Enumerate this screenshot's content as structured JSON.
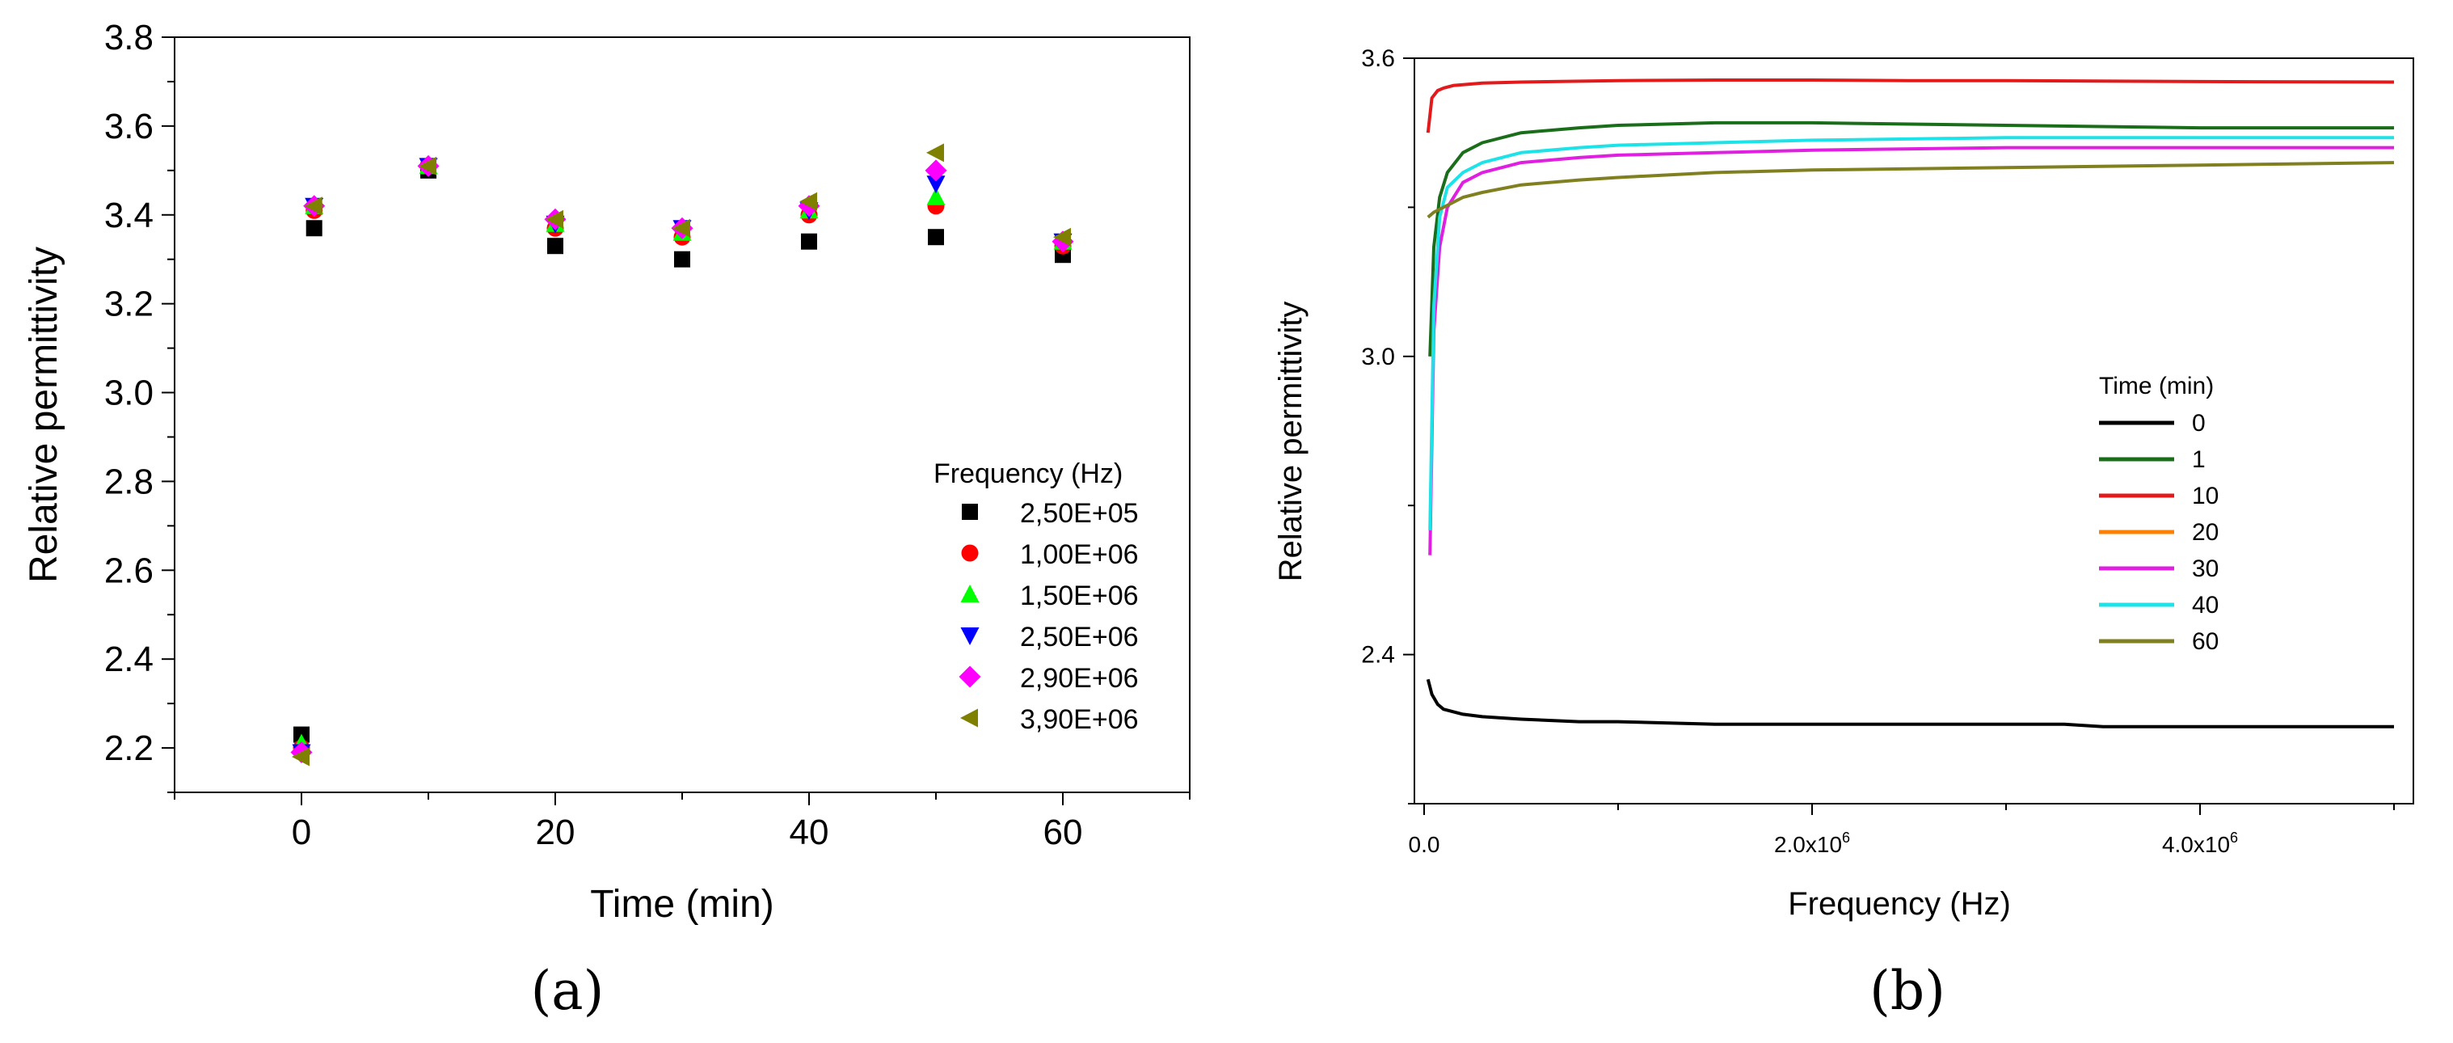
{
  "chart_data": [
    {
      "panel": "(a)",
      "type": "scatter",
      "title": "",
      "xlabel": "Time (min)",
      "ylabel": "Relative permittivity",
      "xlim": [
        -10,
        70
      ],
      "ylim": [
        2.1,
        3.8
      ],
      "xticks": [
        0,
        20,
        40,
        60
      ],
      "yticks": [
        2.2,
        2.4,
        2.6,
        2.8,
        3.0,
        3.2,
        3.4,
        3.6,
        3.8
      ],
      "xtick_labels": [
        "0",
        "20",
        "40",
        "60"
      ],
      "ytick_labels": [
        "2.2",
        "2.4",
        "2.6",
        "2.8",
        "3.0",
        "3.2",
        "3.4",
        "3.6",
        "3.8"
      ],
      "legend_title": "Frequency (Hz)",
      "legend_position": "right",
      "series": [
        {
          "name": "2,50E+05",
          "color": "#000000",
          "marker": "square",
          "points": [
            [
              0,
              2.23
            ],
            [
              1,
              3.37
            ],
            [
              10,
              3.5
            ],
            [
              20,
              3.33
            ],
            [
              30,
              3.3
            ],
            [
              40,
              3.34
            ],
            [
              50,
              3.35
            ],
            [
              60,
              3.31
            ]
          ]
        },
        {
          "name": "1,00E+06",
          "color": "#ff0000",
          "marker": "circle",
          "points": [
            [
              0,
              2.2
            ],
            [
              1,
              3.41
            ],
            [
              10,
              3.51
            ],
            [
              20,
              3.37
            ],
            [
              30,
              3.35
            ],
            [
              40,
              3.4
            ],
            [
              50,
              3.42
            ],
            [
              60,
              3.33
            ]
          ]
        },
        {
          "name": "1,50E+06",
          "color": "#00ff00",
          "marker": "triangle-up",
          "points": [
            [
              0,
              2.21
            ],
            [
              1,
              3.42
            ],
            [
              10,
              3.51
            ],
            [
              20,
              3.38
            ],
            [
              30,
              3.36
            ],
            [
              40,
              3.41
            ],
            [
              50,
              3.44
            ],
            [
              60,
              3.34
            ]
          ]
        },
        {
          "name": "2,50E+06",
          "color": "#0000ff",
          "marker": "triangle-down",
          "points": [
            [
              0,
              2.19
            ],
            [
              1,
              3.42
            ],
            [
              10,
              3.51
            ],
            [
              20,
              3.38
            ],
            [
              30,
              3.37
            ],
            [
              40,
              3.41
            ],
            [
              50,
              3.47
            ],
            [
              60,
              3.34
            ]
          ]
        },
        {
          "name": "2,90E+06",
          "color": "#ff00ff",
          "marker": "diamond",
          "points": [
            [
              0,
              2.19
            ],
            [
              1,
              3.42
            ],
            [
              10,
              3.51
            ],
            [
              20,
              3.39
            ],
            [
              30,
              3.37
            ],
            [
              40,
              3.42
            ],
            [
              50,
              3.5
            ],
            [
              60,
              3.34
            ]
          ]
        },
        {
          "name": "3,90E+06",
          "color": "#808000",
          "marker": "triangle-left",
          "points": [
            [
              0,
              2.18
            ],
            [
              1,
              3.42
            ],
            [
              10,
              3.51
            ],
            [
              20,
              3.39
            ],
            [
              30,
              3.37
            ],
            [
              40,
              3.43
            ],
            [
              50,
              3.54
            ],
            [
              60,
              3.35
            ]
          ]
        }
      ]
    },
    {
      "panel": "(b)",
      "type": "line",
      "title": "",
      "xlabel": "Frequency (Hz)",
      "ylabel": "Relative permittivity",
      "xlim": [
        -0.05,
        5.1
      ],
      "ylim": [
        2.1,
        3.6
      ],
      "x_unit_note": "x values in units of 10^6 Hz",
      "xticks": [
        0,
        2,
        4
      ],
      "xtick_labels": [
        {
          "mantissa": "0.0",
          "exp": ""
        },
        {
          "mantissa": "2.0x10",
          "exp": "6"
        },
        {
          "mantissa": "4.0x10",
          "exp": "6"
        }
      ],
      "yticks": [
        2.4,
        3.0,
        3.6
      ],
      "ytick_labels": [
        "2.4",
        "3.0",
        "3.6"
      ],
      "legend_title": "Time (min)",
      "legend_position": "center-right",
      "series": [
        {
          "name": "0",
          "color": "#000000",
          "x": [
            0.02,
            0.04,
            0.07,
            0.1,
            0.15,
            0.2,
            0.3,
            0.5,
            0.8,
            1.0,
            1.5,
            2.0,
            2.5,
            3.0,
            3.3,
            3.5,
            4.0,
            4.5,
            5.0
          ],
          "y": [
            2.35,
            2.32,
            2.3,
            2.29,
            2.285,
            2.28,
            2.275,
            2.27,
            2.265,
            2.265,
            2.26,
            2.26,
            2.26,
            2.26,
            2.26,
            2.255,
            2.255,
            2.255,
            2.255
          ]
        },
        {
          "name": "1",
          "color": "#1a6e1a",
          "x": [
            0.03,
            0.05,
            0.08,
            0.12,
            0.2,
            0.3,
            0.5,
            0.8,
            1.0,
            1.5,
            2.0,
            3.0,
            4.0,
            5.0
          ],
          "y": [
            3.0,
            3.22,
            3.32,
            3.37,
            3.41,
            3.43,
            3.45,
            3.46,
            3.465,
            3.47,
            3.47,
            3.465,
            3.46,
            3.46
          ]
        },
        {
          "name": "10",
          "color": "#e31a1c",
          "x": [
            0.02,
            0.04,
            0.07,
            0.1,
            0.15,
            0.3,
            0.5,
            1.0,
            1.5,
            2.0,
            2.5,
            3.0,
            4.0,
            5.0
          ],
          "y": [
            3.45,
            3.52,
            3.535,
            3.54,
            3.545,
            3.55,
            3.552,
            3.555,
            3.556,
            3.556,
            3.555,
            3.555,
            3.553,
            3.552
          ]
        },
        {
          "name": "20",
          "color": "#ff8000",
          "x": [],
          "y": []
        },
        {
          "name": "30",
          "color": "#e020e0",
          "x": [
            0.03,
            0.05,
            0.08,
            0.12,
            0.2,
            0.3,
            0.5,
            0.8,
            1.0,
            1.5,
            2.0,
            3.0,
            4.0,
            5.0
          ],
          "y": [
            2.6,
            3.05,
            3.22,
            3.3,
            3.35,
            3.37,
            3.39,
            3.4,
            3.405,
            3.41,
            3.415,
            3.42,
            3.42,
            3.42
          ]
        },
        {
          "name": "40",
          "color": "#1de3e8",
          "x": [
            0.03,
            0.05,
            0.08,
            0.12,
            0.2,
            0.3,
            0.5,
            0.8,
            1.0,
            1.5,
            2.0,
            3.0,
            4.0,
            5.0
          ],
          "y": [
            2.65,
            3.1,
            3.28,
            3.34,
            3.37,
            3.39,
            3.41,
            3.42,
            3.425,
            3.43,
            3.435,
            3.44,
            3.44,
            3.44
          ]
        },
        {
          "name": "60",
          "color": "#808020",
          "x": [
            0.02,
            0.05,
            0.1,
            0.2,
            0.3,
            0.5,
            0.8,
            1.0,
            1.5,
            2.0,
            3.0,
            4.0,
            5.0
          ],
          "y": [
            3.28,
            3.29,
            3.3,
            3.32,
            3.33,
            3.345,
            3.355,
            3.36,
            3.37,
            3.375,
            3.38,
            3.385,
            3.39
          ]
        }
      ]
    }
  ],
  "panel_labels": [
    "(a)",
    "(b)"
  ]
}
